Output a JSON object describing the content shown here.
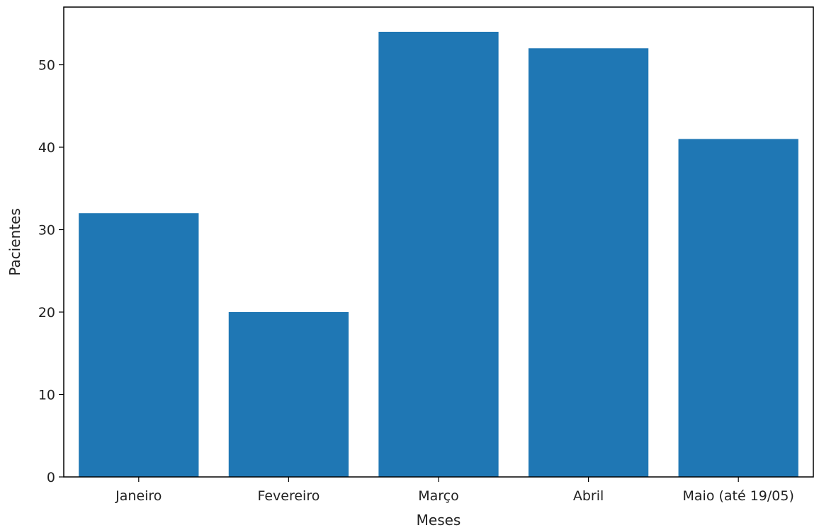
{
  "chart_data": {
    "type": "bar",
    "categories": [
      "Janeiro",
      "Fevereiro",
      "Março",
      "Abril",
      "Maio (até 19/05)"
    ],
    "values": [
      32,
      20,
      54,
      52,
      41
    ],
    "xlabel": "Meses",
    "ylabel": "Pacientes",
    "ylim": [
      0,
      57
    ],
    "yticks": [
      0,
      10,
      20,
      30,
      40,
      50
    ],
    "grid": false,
    "bar_color": "#1f77b4"
  }
}
